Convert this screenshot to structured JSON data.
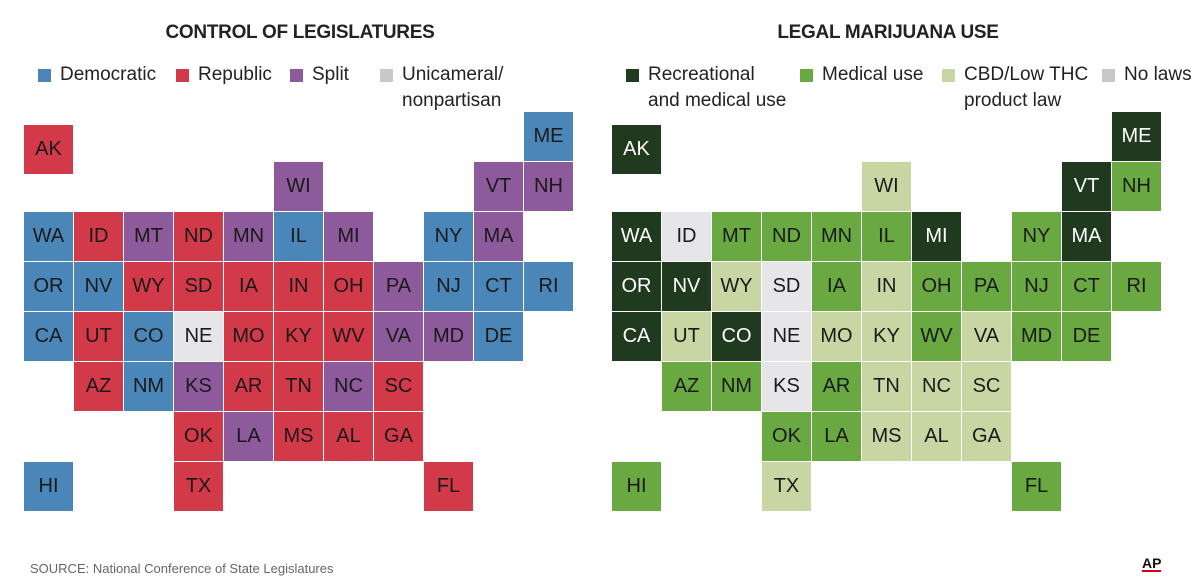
{
  "maps": [
    {
      "title": "CONTROL OF LEGISLATURES",
      "legend": [
        {
          "key": "D",
          "label": "Democratic",
          "color": "#4a86b8"
        },
        {
          "key": "R",
          "label": "Republic",
          "color": "#d23a4a"
        },
        {
          "key": "S",
          "label": "Split",
          "color": "#8d5a9c"
        },
        {
          "key": "U",
          "label": "Unicameral/\nnonpartisan",
          "color": "#e6e6e8"
        }
      ],
      "states": {
        "AK": "R",
        "ME": "D",
        "WI": "S",
        "VT": "S",
        "NH": "S",
        "WA": "D",
        "ID": "R",
        "MT": "S",
        "ND": "R",
        "MN": "S",
        "IL": "D",
        "MI": "S",
        "NY": "D",
        "MA": "S",
        "OR": "D",
        "NV": "D",
        "WY": "R",
        "SD": "R",
        "IA": "R",
        "IN": "R",
        "OH": "R",
        "PA": "S",
        "NJ": "D",
        "CT": "D",
        "RI": "D",
        "CA": "D",
        "UT": "R",
        "CO": "D",
        "NE": "U",
        "MO": "R",
        "KY": "R",
        "WV": "R",
        "VA": "S",
        "MD": "S",
        "DE": "D",
        "AZ": "R",
        "NM": "D",
        "KS": "S",
        "AR": "R",
        "TN": "R",
        "NC": "S",
        "SC": "R",
        "OK": "R",
        "LA": "S",
        "MS": "R",
        "AL": "R",
        "GA": "R",
        "HI": "D",
        "TX": "R",
        "FL": "R"
      }
    },
    {
      "title": "LEGAL MARIJUANA USE",
      "legend": [
        {
          "key": "REC",
          "label": "Recreational\nand medical use",
          "color": "#1f3a1e"
        },
        {
          "key": "MED",
          "label": "Medical use",
          "color": "#6aa841"
        },
        {
          "key": "CBD",
          "label": "CBD/Low THC\nproduct law",
          "color": "#c7d6a3"
        },
        {
          "key": "NO",
          "label": "No laws",
          "color": "#e6e6e8"
        }
      ],
      "states": {
        "AK": "REC",
        "ME": "REC",
        "WI": "CBD",
        "VT": "REC",
        "NH": "MED",
        "WA": "REC",
        "ID": "NO",
        "MT": "MED",
        "ND": "MED",
        "MN": "MED",
        "IL": "MED",
        "MI": "REC",
        "NY": "MED",
        "MA": "REC",
        "OR": "REC",
        "NV": "REC",
        "WY": "CBD",
        "SD": "NO",
        "IA": "MED",
        "IN": "CBD",
        "OH": "MED",
        "PA": "MED",
        "NJ": "MED",
        "CT": "MED",
        "RI": "MED",
        "CA": "REC",
        "UT": "CBD",
        "CO": "REC",
        "NE": "NO",
        "MO": "CBD",
        "KY": "CBD",
        "WV": "MED",
        "VA": "CBD",
        "MD": "MED",
        "DE": "MED",
        "AZ": "MED",
        "NM": "MED",
        "KS": "NO",
        "AR": "MED",
        "TN": "CBD",
        "NC": "CBD",
        "SC": "CBD",
        "OK": "MED",
        "LA": "MED",
        "MS": "CBD",
        "AL": "CBD",
        "GA": "CBD",
        "HI": "MED",
        "TX": "CBD",
        "FL": "MED"
      }
    }
  ],
  "source": "SOURCE: National Conference of State Legislatures",
  "logo": "AP"
}
